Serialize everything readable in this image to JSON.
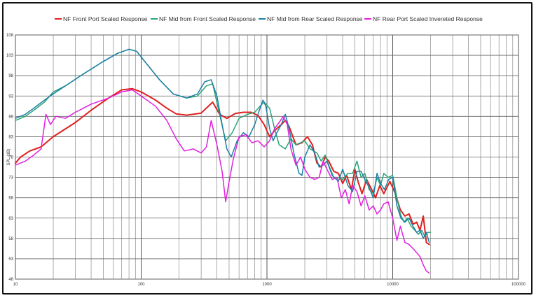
{
  "chart_data": {
    "type": "line",
    "title": "",
    "xlabel": "",
    "ylabel": "SPL (dB)",
    "x_scale": "log",
    "xlim": [
      10,
      100000
    ],
    "ylim": [
      48,
      108
    ],
    "grid": true,
    "legend_position": "top",
    "x_tick_labels": [
      "10",
      "100",
      "1000",
      "10000",
      "100000"
    ],
    "x_tick_values": [
      10,
      100,
      1000,
      10000,
      100000
    ],
    "y_tick_labels": [
      "48",
      "53",
      "58",
      "63",
      "68",
      "73",
      "78",
      "83",
      "88",
      "93",
      "98",
      "103",
      "108"
    ],
    "y_tick_values": [
      48,
      53,
      58,
      63,
      68,
      73,
      78,
      83,
      88,
      93,
      98,
      103,
      108
    ],
    "series": [
      {
        "name": "NF Front Port Scaled Response",
        "color": "#e02020",
        "points": [
          [
            10,
            76.5
          ],
          [
            11,
            78
          ],
          [
            13,
            79.5
          ],
          [
            16,
            80.5
          ],
          [
            20,
            83
          ],
          [
            30,
            86.5
          ],
          [
            40,
            89.5
          ],
          [
            55,
            92.5
          ],
          [
            70,
            94.5
          ],
          [
            85,
            94.8
          ],
          [
            100,
            94
          ],
          [
            130,
            92
          ],
          [
            160,
            90
          ],
          [
            190,
            88.6
          ],
          [
            230,
            88.3
          ],
          [
            300,
            88.8
          ],
          [
            370,
            91.5
          ],
          [
            420,
            88.5
          ],
          [
            480,
            87.5
          ],
          [
            560,
            88.7
          ],
          [
            650,
            89
          ],
          [
            750,
            89
          ],
          [
            850,
            88.2
          ],
          [
            950,
            86
          ],
          [
            1050,
            83
          ],
          [
            1150,
            84.5
          ],
          [
            1300,
            86
          ],
          [
            1400,
            87
          ],
          [
            1500,
            85.5
          ],
          [
            1700,
            81
          ],
          [
            1900,
            81.5
          ],
          [
            2100,
            83
          ],
          [
            2300,
            81
          ],
          [
            2500,
            76.5
          ],
          [
            2700,
            75.5
          ],
          [
            2900,
            78
          ],
          [
            3100,
            77
          ],
          [
            3400,
            74.5
          ],
          [
            3700,
            74
          ],
          [
            4000,
            71.5
          ],
          [
            4300,
            73.5
          ],
          [
            4700,
            70
          ],
          [
            5000,
            75
          ],
          [
            5300,
            72
          ],
          [
            5700,
            69
          ],
          [
            6200,
            72.5
          ],
          [
            6800,
            70
          ],
          [
            7300,
            68
          ],
          [
            7900,
            71
          ],
          [
            8500,
            69
          ],
          [
            9500,
            72
          ],
          [
            10500,
            69
          ],
          [
            11500,
            65
          ],
          [
            12500,
            63.5
          ],
          [
            13500,
            64
          ],
          [
            14500,
            61.5
          ],
          [
            15500,
            62
          ],
          [
            16500,
            60
          ],
          [
            17500,
            63.5
          ],
          [
            18500,
            57
          ],
          [
            19500,
            56.5
          ]
        ]
      },
      {
        "name": "NF Mid from Front Scaled Response",
        "color": "#2aa577",
        "points": [
          [
            10,
            87
          ],
          [
            12,
            88
          ],
          [
            14,
            89.5
          ],
          [
            17,
            91.5
          ],
          [
            20,
            94
          ],
          [
            25,
            95.5
          ],
          [
            35,
            98.5
          ],
          [
            50,
            101.5
          ],
          [
            65,
            103.5
          ],
          [
            80,
            104.5
          ],
          [
            92,
            104
          ],
          [
            110,
            101
          ],
          [
            140,
            97
          ],
          [
            180,
            93.5
          ],
          [
            230,
            92.5
          ],
          [
            280,
            93
          ],
          [
            330,
            95.5
          ],
          [
            370,
            96
          ],
          [
            420,
            88.5
          ],
          [
            470,
            82
          ],
          [
            530,
            84
          ],
          [
            600,
            87.5
          ],
          [
            700,
            88.5
          ],
          [
            800,
            89
          ],
          [
            880,
            90.5
          ],
          [
            950,
            91.5
          ],
          [
            1050,
            90
          ],
          [
            1150,
            85
          ],
          [
            1250,
            81
          ],
          [
            1400,
            80
          ],
          [
            1550,
            82.5
          ],
          [
            1700,
            81
          ],
          [
            1850,
            81.5
          ],
          [
            2000,
            82
          ],
          [
            2200,
            80
          ],
          [
            2500,
            79
          ],
          [
            2700,
            77
          ],
          [
            2900,
            78.5
          ],
          [
            3100,
            76
          ],
          [
            3400,
            73
          ],
          [
            3700,
            73
          ],
          [
            4000,
            72.5
          ],
          [
            4400,
            74
          ],
          [
            4800,
            74
          ],
          [
            5200,
            77
          ],
          [
            5600,
            73
          ],
          [
            6000,
            74
          ],
          [
            6500,
            70
          ],
          [
            7000,
            69
          ],
          [
            7500,
            73
          ],
          [
            8000,
            71
          ],
          [
            8500,
            74
          ],
          [
            9200,
            73
          ],
          [
            10000,
            73.5
          ],
          [
            10800,
            68
          ],
          [
            11500,
            64
          ],
          [
            12300,
            62
          ],
          [
            13000,
            63
          ],
          [
            14000,
            61
          ],
          [
            15000,
            60
          ],
          [
            16000,
            59
          ],
          [
            17000,
            60
          ],
          [
            18000,
            58.5
          ],
          [
            19000,
            59.5
          ],
          [
            20000,
            59.5
          ]
        ]
      },
      {
        "name": "NF Mid from Rear Scaled Response",
        "color": "#1d7fa6",
        "points": [
          [
            10,
            87.5
          ],
          [
            12,
            88.5
          ],
          [
            14,
            90
          ],
          [
            17,
            92
          ],
          [
            20,
            93.5
          ],
          [
            25,
            95.5
          ],
          [
            35,
            98.5
          ],
          [
            50,
            101.5
          ],
          [
            65,
            103.5
          ],
          [
            80,
            104.5
          ],
          [
            92,
            104
          ],
          [
            110,
            101
          ],
          [
            140,
            97
          ],
          [
            180,
            93.5
          ],
          [
            230,
            92.5
          ],
          [
            280,
            93.5
          ],
          [
            320,
            96.5
          ],
          [
            360,
            97
          ],
          [
            400,
            93
          ],
          [
            440,
            86
          ],
          [
            480,
            80
          ],
          [
            520,
            78
          ],
          [
            580,
            82
          ],
          [
            650,
            84
          ],
          [
            720,
            83
          ],
          [
            800,
            86
          ],
          [
            870,
            89.5
          ],
          [
            930,
            92
          ],
          [
            980,
            90.5
          ],
          [
            1050,
            85
          ],
          [
            1120,
            82
          ],
          [
            1200,
            84
          ],
          [
            1300,
            86
          ],
          [
            1400,
            88.5
          ],
          [
            1500,
            85
          ],
          [
            1650,
            78.5
          ],
          [
            1800,
            74
          ],
          [
            1900,
            73.5
          ],
          [
            2000,
            78
          ],
          [
            2200,
            81
          ],
          [
            2400,
            79
          ],
          [
            2600,
            75.5
          ],
          [
            2800,
            76
          ],
          [
            3000,
            77
          ],
          [
            3300,
            73.5
          ],
          [
            3700,
            72
          ],
          [
            4000,
            75
          ],
          [
            4400,
            71
          ],
          [
            4800,
            69.5
          ],
          [
            5200,
            74.5
          ],
          [
            5600,
            74.5
          ],
          [
            6000,
            72.5
          ],
          [
            6500,
            70.5
          ],
          [
            7000,
            68
          ],
          [
            7500,
            74
          ],
          [
            8000,
            71.5
          ],
          [
            8600,
            70
          ],
          [
            9300,
            72.5
          ],
          [
            10000,
            73
          ],
          [
            10800,
            66
          ],
          [
            11600,
            63
          ],
          [
            12500,
            62
          ],
          [
            13500,
            63
          ],
          [
            14500,
            61
          ],
          [
            15500,
            59.5
          ],
          [
            16500,
            60
          ],
          [
            17500,
            58
          ],
          [
            18500,
            59.5
          ],
          [
            19500,
            57
          ]
        ]
      },
      {
        "name": "NF Rear Port Scaled Invereted Response",
        "color": "#e020e0",
        "points": [
          [
            10,
            76
          ],
          [
            12,
            77
          ],
          [
            14,
            78.5
          ],
          [
            16,
            80
          ],
          [
            17.5,
            88.5
          ],
          [
            19,
            86
          ],
          [
            21,
            88
          ],
          [
            25,
            87.5
          ],
          [
            30,
            89
          ],
          [
            40,
            91
          ],
          [
            55,
            92.5
          ],
          [
            70,
            94
          ],
          [
            85,
            94.5
          ],
          [
            100,
            93
          ],
          [
            130,
            90.5
          ],
          [
            160,
            87
          ],
          [
            190,
            82.5
          ],
          [
            220,
            79.5
          ],
          [
            260,
            80
          ],
          [
            300,
            79
          ],
          [
            330,
            80.5
          ],
          [
            360,
            87
          ],
          [
            400,
            81
          ],
          [
            440,
            74.5
          ],
          [
            470,
            67
          ],
          [
            500,
            72
          ],
          [
            540,
            77.5
          ],
          [
            600,
            83
          ],
          [
            680,
            83.5
          ],
          [
            760,
            81.5
          ],
          [
            850,
            82
          ],
          [
            950,
            80.5
          ],
          [
            1050,
            82
          ],
          [
            1150,
            85
          ],
          [
            1250,
            86.5
          ],
          [
            1350,
            88
          ],
          [
            1450,
            86
          ],
          [
            1550,
            80
          ],
          [
            1700,
            76
          ],
          [
            1850,
            78
          ],
          [
            2000,
            75
          ],
          [
            2200,
            73
          ],
          [
            2400,
            72.5
          ],
          [
            2600,
            73
          ],
          [
            2800,
            77
          ],
          [
            3000,
            75
          ],
          [
            3300,
            72.5
          ],
          [
            3600,
            73
          ],
          [
            3900,
            68
          ],
          [
            4200,
            70
          ],
          [
            4500,
            66.5
          ],
          [
            4800,
            71
          ],
          [
            5200,
            69.5
          ],
          [
            5600,
            66
          ],
          [
            6000,
            68.5
          ],
          [
            6500,
            65
          ],
          [
            7000,
            66
          ],
          [
            7500,
            64
          ],
          [
            8000,
            65
          ],
          [
            8500,
            66.5
          ],
          [
            9200,
            67
          ],
          [
            10000,
            63
          ],
          [
            10800,
            57.5
          ],
          [
            11500,
            61
          ],
          [
            12500,
            57
          ],
          [
            13500,
            56.5
          ],
          [
            14500,
            55.5
          ],
          [
            15500,
            54.5
          ],
          [
            16500,
            53.5
          ],
          [
            17500,
            51.5
          ],
          [
            18500,
            50
          ],
          [
            19500,
            49.5
          ]
        ]
      }
    ]
  }
}
